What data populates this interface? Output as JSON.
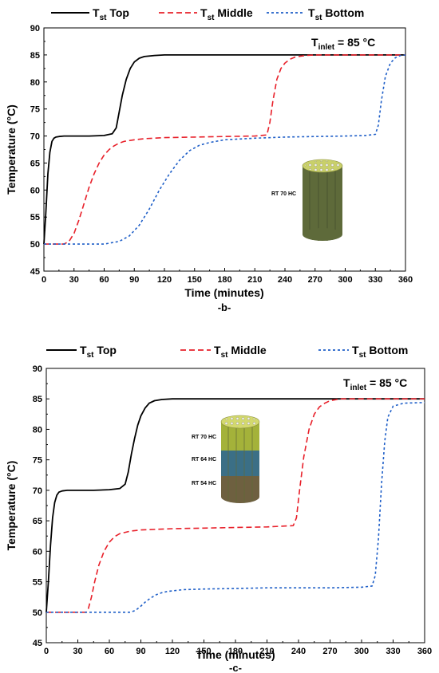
{
  "chart_data": [
    {
      "type": "line",
      "panel_label": "-b-",
      "annotation": {
        "text": "T",
        "sub": "inlet",
        "rest": " = 85 °C"
      },
      "xlabel": "Time (minutes)",
      "ylabel": "Temperature (°C)",
      "xlim": [
        0,
        360
      ],
      "ylim": [
        45,
        90
      ],
      "xticks": [
        0,
        30,
        60,
        90,
        120,
        150,
        180,
        210,
        240,
        270,
        300,
        330,
        360
      ],
      "yticks": [
        45,
        50,
        55,
        60,
        65,
        70,
        75,
        80,
        85,
        90
      ],
      "grid": false,
      "legend_position": "top",
      "inset_labels": [
        "RT 70 HC"
      ],
      "series": [
        {
          "name": "T",
          "sub": "st",
          "suffix": " Top",
          "color": "#000000",
          "dash": "solid",
          "x": [
            0,
            2,
            4,
            6,
            8,
            10,
            12,
            15,
            20,
            30,
            45,
            60,
            68,
            72,
            75,
            78,
            82,
            86,
            90,
            95,
            100,
            110,
            120,
            130,
            150,
            200,
            300,
            360
          ],
          "y": [
            50,
            56,
            63,
            67,
            69,
            69.6,
            69.8,
            69.9,
            70,
            70,
            70,
            70.1,
            70.4,
            71.5,
            74.5,
            77.5,
            80.5,
            82.5,
            83.7,
            84.4,
            84.7,
            84.9,
            85,
            85,
            85,
            85,
            85,
            85
          ]
        },
        {
          "name": "T",
          "sub": "st",
          "suffix": " Middle",
          "color": "#e8202a",
          "dash": "7,4",
          "x": [
            0,
            10,
            20,
            25,
            30,
            35,
            40,
            45,
            50,
            55,
            60,
            65,
            70,
            75,
            80,
            90,
            100,
            120,
            150,
            180,
            210,
            222,
            225,
            228,
            232,
            236,
            240,
            245,
            250,
            260,
            270,
            300,
            360
          ],
          "y": [
            50,
            50,
            50,
            50.5,
            52,
            54.5,
            57.5,
            60.5,
            63,
            65,
            66.5,
            67.5,
            68.2,
            68.7,
            69,
            69.3,
            69.5,
            69.7,
            69.8,
            69.9,
            70,
            70.2,
            72.5,
            76.5,
            80.5,
            82.5,
            83.5,
            84.2,
            84.6,
            84.9,
            85,
            85,
            85
          ]
        },
        {
          "name": "T",
          "sub": "st",
          "suffix": " Bottom",
          "color": "#1f5fc8",
          "dash": "3,3",
          "x": [
            0,
            30,
            60,
            75,
            85,
            95,
            105,
            115,
            125,
            135,
            145,
            155,
            165,
            180,
            210,
            240,
            270,
            300,
            320,
            330,
            333,
            336,
            340,
            345,
            350,
            355,
            360
          ],
          "y": [
            50,
            50,
            50,
            50.5,
            51.5,
            53.5,
            56.5,
            60,
            63,
            65.5,
            67.3,
            68.3,
            68.8,
            69.3,
            69.6,
            69.8,
            69.9,
            70,
            70.1,
            70.3,
            72,
            76.5,
            81,
            83.5,
            84.5,
            84.9,
            85
          ]
        }
      ]
    },
    {
      "type": "line",
      "panel_label": "-c-",
      "annotation": {
        "text": "T",
        "sub": "inlet",
        "rest": " = 85 °C"
      },
      "xlabel": "Time (minutes)",
      "ylabel": "Temperature (°C)",
      "xlim": [
        0,
        360
      ],
      "ylim": [
        45,
        90
      ],
      "xticks": [
        0,
        30,
        60,
        90,
        120,
        150,
        180,
        210,
        240,
        270,
        300,
        330,
        360
      ],
      "yticks": [
        45,
        50,
        55,
        60,
        65,
        70,
        75,
        80,
        85,
        90
      ],
      "grid": false,
      "legend_position": "top",
      "inset_labels": [
        "RT 70 HC",
        "RT 64 HC",
        "RT 54 HC"
      ],
      "series": [
        {
          "name": "T",
          "sub": "st",
          "suffix": " Top",
          "color": "#000000",
          "dash": "solid",
          "x": [
            0,
            2,
            4,
            6,
            8,
            10,
            12,
            15,
            20,
            30,
            45,
            60,
            70,
            75,
            78,
            81,
            84,
            87,
            90,
            94,
            98,
            103,
            110,
            120,
            130,
            150,
            200,
            300,
            360
          ],
          "y": [
            50,
            55,
            61,
            65.5,
            68,
            69.2,
            69.7,
            69.9,
            70,
            70,
            70,
            70.1,
            70.3,
            71,
            73,
            76,
            78.5,
            80.7,
            82.2,
            83.5,
            84.3,
            84.7,
            84.9,
            85,
            85,
            85,
            85,
            85,
            85
          ]
        },
        {
          "name": "T",
          "sub": "st",
          "suffix": " Middle",
          "color": "#e8202a",
          "dash": "7,4",
          "x": [
            0,
            20,
            38,
            40,
            43,
            46,
            50,
            55,
            60,
            65,
            70,
            80,
            90,
            120,
            150,
            180,
            210,
            235,
            238,
            241,
            245,
            250,
            255,
            260,
            265,
            270,
            280,
            300,
            360
          ],
          "y": [
            50,
            50,
            50,
            50.6,
            52.5,
            55,
            57.7,
            60,
            61.5,
            62.4,
            62.9,
            63.3,
            63.5,
            63.7,
            63.8,
            63.9,
            64,
            64.2,
            65.5,
            70,
            75.5,
            80,
            82.5,
            83.7,
            84.3,
            84.7,
            85,
            85,
            85
          ]
        },
        {
          "name": "T",
          "sub": "st",
          "suffix": " Bottom",
          "color": "#1f5fc8",
          "dash": "3,3",
          "x": [
            0,
            40,
            80,
            85,
            90,
            95,
            100,
            105,
            110,
            115,
            120,
            130,
            150,
            180,
            210,
            240,
            270,
            300,
            310,
            313,
            316,
            319,
            322,
            325,
            330,
            340,
            360
          ],
          "y": [
            50,
            50,
            50,
            50.3,
            51,
            51.8,
            52.4,
            52.9,
            53.2,
            53.4,
            53.5,
            53.7,
            53.8,
            53.9,
            54,
            54,
            54,
            54.1,
            54.3,
            56,
            62,
            71,
            78,
            82,
            83.8,
            84.3,
            84.4
          ]
        }
      ]
    }
  ]
}
